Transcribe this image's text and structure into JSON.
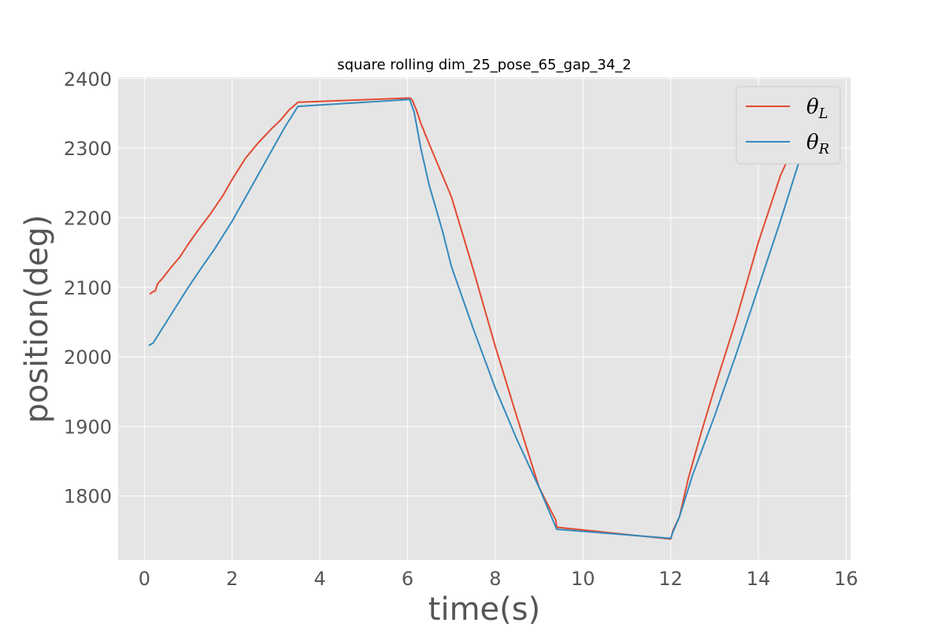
{
  "chart_data": {
    "type": "line",
    "title": "square rolling dim_25_pose_65_gap_34_2",
    "xlabel": "time(s)",
    "ylabel": "position(deg)",
    "xlim": [
      -0.6,
      16.1
    ],
    "ylim": [
      1708,
      2402
    ],
    "xticks": [
      0,
      2,
      4,
      6,
      8,
      10,
      12,
      14,
      16
    ],
    "yticks": [
      1800,
      1900,
      2000,
      2100,
      2200,
      2300,
      2400
    ],
    "grid": true,
    "legend_position": "top-right",
    "series": [
      {
        "name": "θL",
        "label_main": "θ",
        "label_sub": "L",
        "color": "#E24A33",
        "x": [
          0.12,
          0.18,
          0.25,
          0.3,
          0.4,
          0.6,
          0.8,
          1.0,
          1.2,
          1.5,
          1.8,
          2.0,
          2.3,
          2.6,
          2.9,
          3.1,
          3.3,
          3.45,
          3.5,
          6.0,
          6.05,
          6.1,
          6.2,
          6.3,
          6.5,
          7.0,
          7.5,
          8.0,
          8.5,
          9.0,
          9.38,
          9.4,
          12.0,
          12.05,
          12.2,
          12.4,
          12.7,
          13.0,
          13.5,
          14.0,
          14.5,
          15.0,
          15.3
        ],
        "values": [
          2090,
          2093,
          2095,
          2105,
          2112,
          2128,
          2143,
          2162,
          2180,
          2205,
          2233,
          2255,
          2285,
          2308,
          2328,
          2340,
          2355,
          2363,
          2366,
          2372,
          2372,
          2370,
          2355,
          2336,
          2305,
          2230,
          2125,
          2015,
          1912,
          1812,
          1765,
          1755,
          1738,
          1750,
          1770,
          1825,
          1892,
          1955,
          2055,
          2165,
          2260,
          2330,
          2360
        ]
      },
      {
        "name": "θR",
        "label_main": "θ",
        "label_sub": "R",
        "color": "#348ABD",
        "x": [
          0.1,
          0.2,
          0.3,
          0.4,
          0.6,
          0.8,
          1.0,
          1.3,
          1.6,
          2.0,
          2.4,
          2.8,
          3.2,
          3.5,
          6.05,
          6.15,
          6.3,
          6.5,
          6.8,
          7.0,
          7.5,
          8.0,
          8.5,
          9.0,
          9.4,
          12.0,
          12.05,
          12.2,
          12.5,
          13.0,
          13.5,
          14.0,
          14.5,
          15.0,
          15.35
        ],
        "values": [
          2016,
          2020,
          2030,
          2040,
          2060,
          2080,
          2100,
          2128,
          2155,
          2195,
          2240,
          2285,
          2330,
          2360,
          2370,
          2352,
          2300,
          2245,
          2180,
          2130,
          2040,
          1955,
          1880,
          1812,
          1752,
          1739,
          1748,
          1770,
          1830,
          1915,
          2005,
          2100,
          2195,
          2295,
          2350
        ]
      }
    ]
  }
}
